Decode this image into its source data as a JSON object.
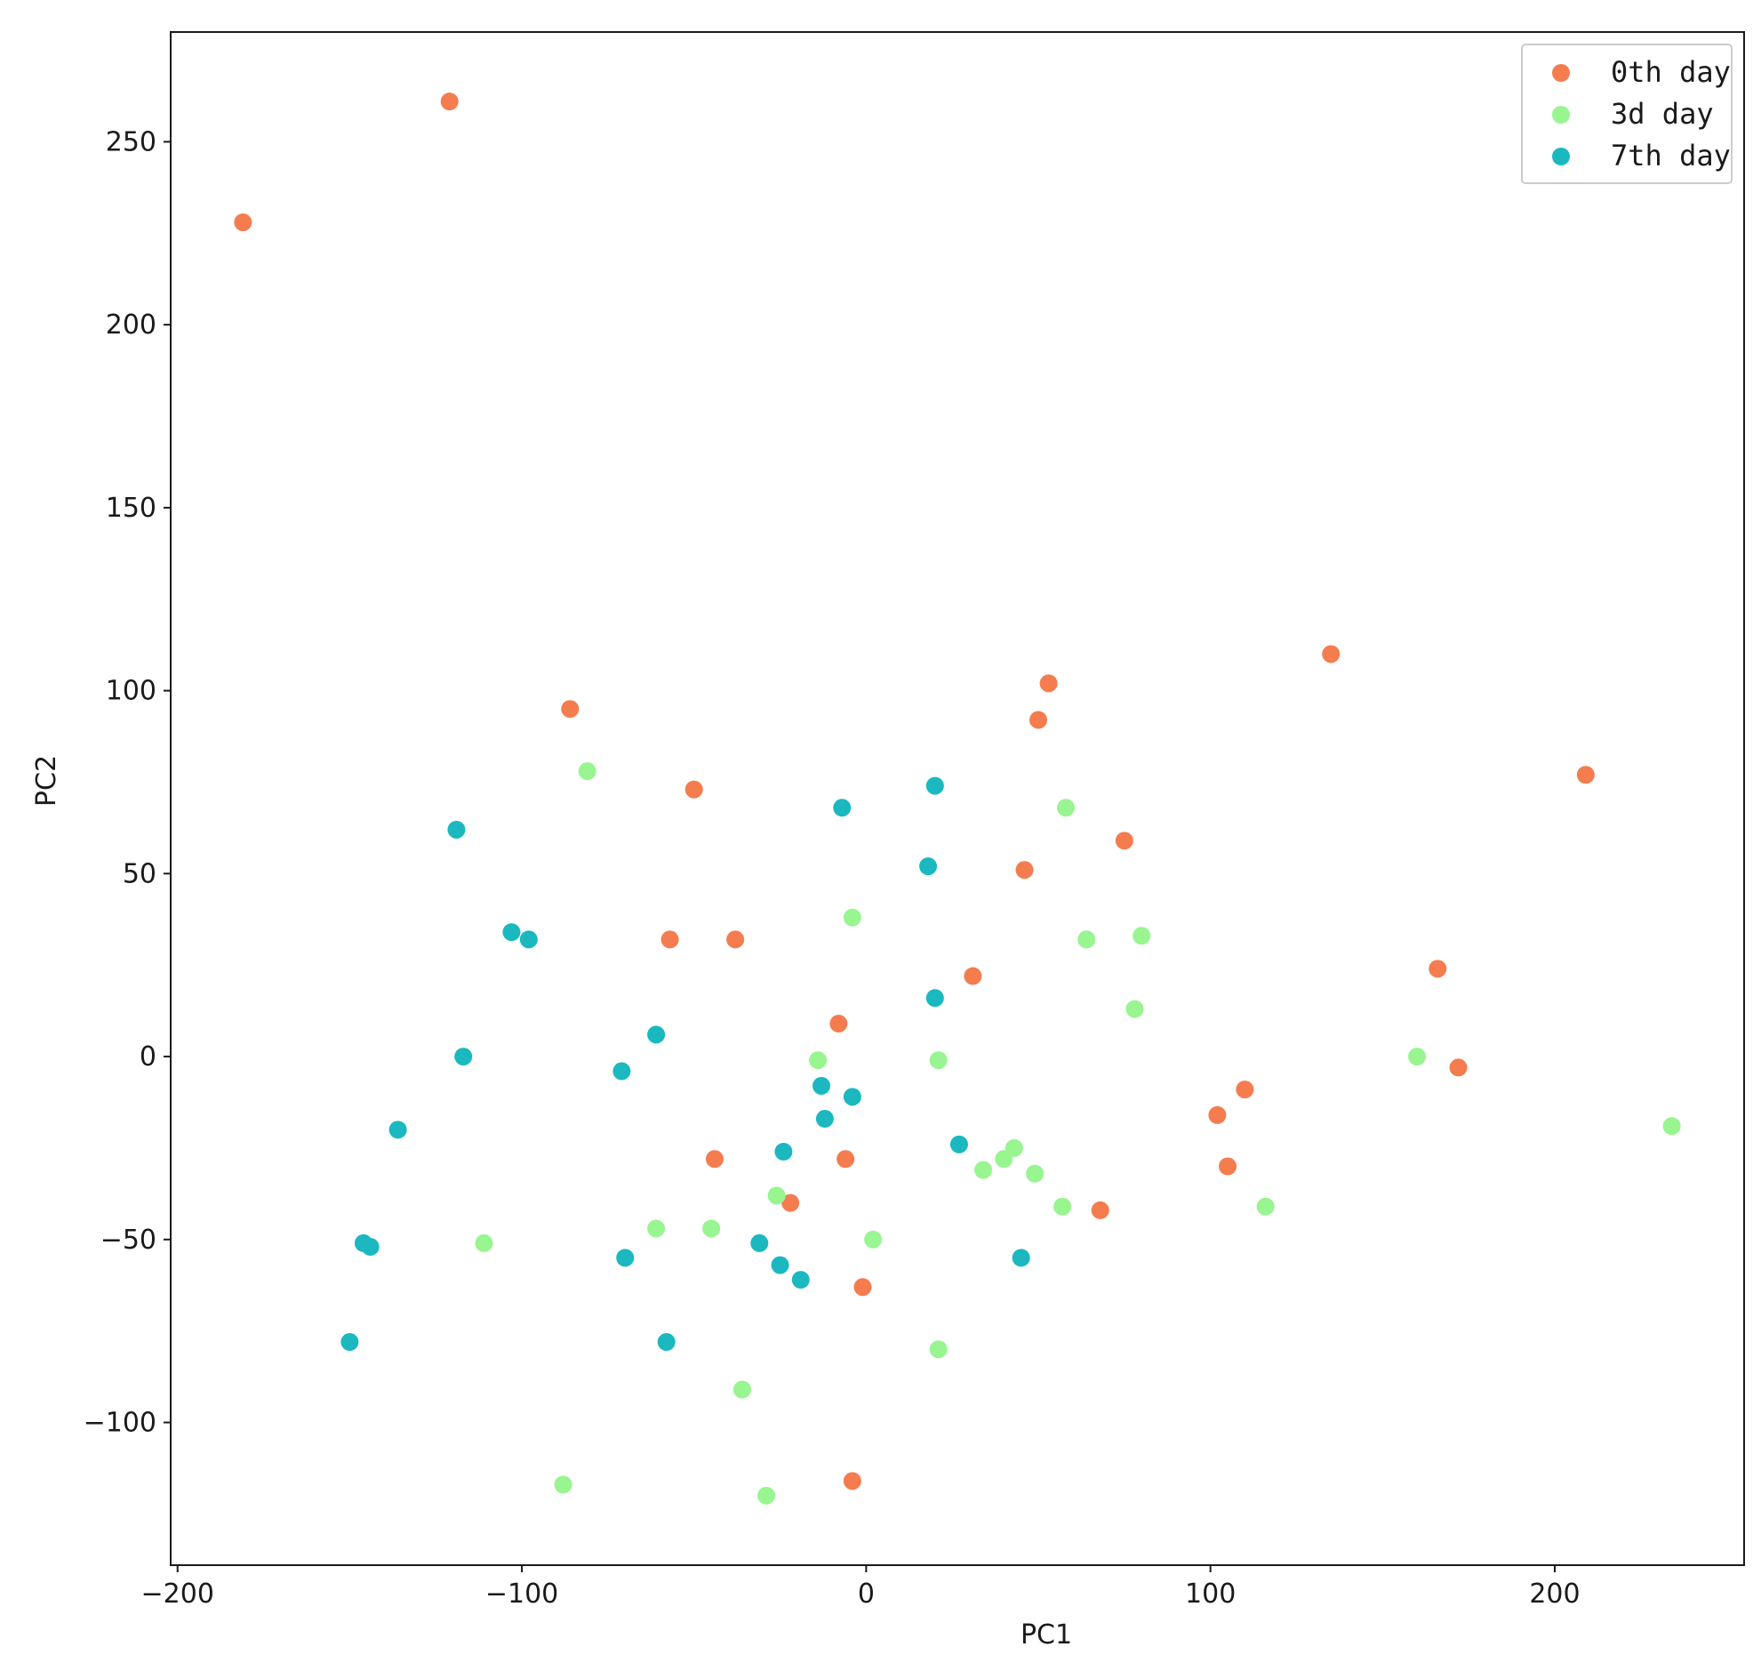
{
  "chart_data": {
    "type": "scatter",
    "xlabel": "PC1",
    "ylabel": "PC2",
    "xlim": [
      -202,
      255
    ],
    "ylim": [
      -139,
      280
    ],
    "x_ticks": [
      -200,
      -100,
      0,
      100,
      200
    ],
    "y_ticks": [
      -100,
      -50,
      0,
      50,
      100,
      150,
      200,
      250
    ],
    "x_tick_labels": [
      "−200",
      "−100",
      "0",
      "100",
      "200"
    ],
    "y_tick_labels": [
      "−100",
      "−50",
      "0",
      "50",
      "100",
      "150",
      "200",
      "250"
    ],
    "grid": false,
    "legend_position": "top-right",
    "series": [
      {
        "name": "0th day",
        "color": "#f47c4f",
        "points": [
          [
            -181,
            228
          ],
          [
            -121,
            261
          ],
          [
            -86,
            95
          ],
          [
            -50,
            73
          ],
          [
            -57,
            32
          ],
          [
            -38,
            32
          ],
          [
            53,
            102
          ],
          [
            50,
            92
          ],
          [
            135,
            110
          ],
          [
            209,
            77
          ],
          [
            75,
            59
          ],
          [
            46,
            51
          ],
          [
            31,
            22
          ],
          [
            -8,
            9
          ],
          [
            166,
            24
          ],
          [
            172,
            -3
          ],
          [
            110,
            -9
          ],
          [
            102,
            -16
          ],
          [
            105,
            -30
          ],
          [
            68,
            -42
          ],
          [
            -44,
            -28
          ],
          [
            -6,
            -28
          ],
          [
            -22,
            -40
          ],
          [
            -1,
            -63
          ],
          [
            -4,
            -116
          ]
        ]
      },
      {
        "name": "3d day",
        "color": "#98f590",
        "points": [
          [
            -81,
            78
          ],
          [
            58,
            68
          ],
          [
            -4,
            38
          ],
          [
            64,
            32
          ],
          [
            80,
            33
          ],
          [
            78,
            13
          ],
          [
            -14,
            -1
          ],
          [
            21,
            -1
          ],
          [
            160,
            0
          ],
          [
            234,
            -19
          ],
          [
            43,
            -25
          ],
          [
            40,
            -28
          ],
          [
            34,
            -31
          ],
          [
            49,
            -32
          ],
          [
            57,
            -41
          ],
          [
            116,
            -41
          ],
          [
            -26,
            -38
          ],
          [
            -61,
            -47
          ],
          [
            -45,
            -47
          ],
          [
            2,
            -50
          ],
          [
            -111,
            -51
          ],
          [
            21,
            -80
          ],
          [
            -36,
            -91
          ],
          [
            -88,
            -117
          ],
          [
            -29,
            -120
          ]
        ]
      },
      {
        "name": "7th day",
        "color": "#1bb8bf",
        "points": [
          [
            20,
            74
          ],
          [
            -7,
            68
          ],
          [
            -119,
            62
          ],
          [
            18,
            52
          ],
          [
            -103,
            34
          ],
          [
            -98,
            32
          ],
          [
            20,
            16
          ],
          [
            -61,
            6
          ],
          [
            -117,
            0
          ],
          [
            -71,
            -4
          ],
          [
            -13,
            -8
          ],
          [
            -4,
            -11
          ],
          [
            -12,
            -17
          ],
          [
            -136,
            -20
          ],
          [
            -24,
            -26
          ],
          [
            27,
            -24
          ],
          [
            -146,
            -51
          ],
          [
            -144,
            -52
          ],
          [
            -31,
            -51
          ],
          [
            -70,
            -55
          ],
          [
            -25,
            -57
          ],
          [
            -19,
            -61
          ],
          [
            45,
            -55
          ],
          [
            -150,
            -78
          ],
          [
            -58,
            -78
          ]
        ]
      }
    ]
  }
}
